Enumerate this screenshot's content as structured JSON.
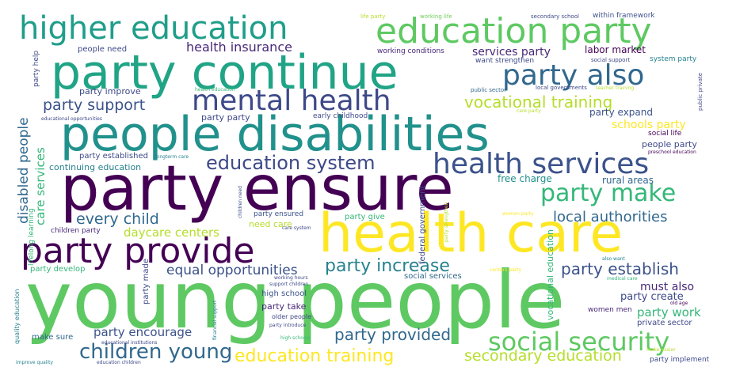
{
  "cloud": {
    "words": [
      {
        "id": "young-people",
        "text": "young people",
        "color": "#5ec962"
      },
      {
        "id": "party-ensure",
        "text": "party ensure",
        "color": "#440154"
      },
      {
        "id": "health-care",
        "text": "health care",
        "color": "#fde725"
      },
      {
        "id": "people-disabilities",
        "text": "people disabilities",
        "color": "#21918c"
      },
      {
        "id": "party-continue",
        "text": "party continue",
        "color": "#20a486"
      },
      {
        "id": "education-party",
        "text": "education party",
        "color": "#5ec962"
      },
      {
        "id": "higher-education",
        "text": "higher education",
        "color": "#1f9e89"
      },
      {
        "id": "party-provide",
        "text": "party provide",
        "color": "#440154"
      },
      {
        "id": "mental-health",
        "text": "mental health",
        "color": "#3e4989"
      },
      {
        "id": "party-also",
        "text": "party also",
        "color": "#31688e"
      },
      {
        "id": "health-services",
        "text": "health services",
        "color": "#3b528b"
      },
      {
        "id": "social-security",
        "text": "social security",
        "color": "#5ec962"
      },
      {
        "id": "party-make",
        "text": "party make",
        "color": "#35b779"
      },
      {
        "id": "children-young",
        "text": "children young",
        "color": "#31688e"
      },
      {
        "id": "education-system",
        "text": "education system",
        "color": "#3e4989"
      },
      {
        "id": "education-training",
        "text": "education training",
        "color": "#fde725"
      },
      {
        "id": "vocational-training",
        "text": "vocational training",
        "color": "#b5de2b"
      },
      {
        "id": "party-support",
        "text": "party support",
        "color": "#3b528b"
      },
      {
        "id": "party-establish",
        "text": "party establish",
        "color": "#3b528b"
      },
      {
        "id": "party-increase",
        "text": "party increase",
        "color": "#26828e"
      },
      {
        "id": "secondary-education",
        "text": "secondary education",
        "color": "#b5de2b"
      },
      {
        "id": "local-authorities",
        "text": "local authorities",
        "color": "#31688e"
      },
      {
        "id": "every-child",
        "text": "every child",
        "color": "#31688e"
      },
      {
        "id": "party-provided",
        "text": "party provided",
        "color": "#31688e"
      },
      {
        "id": "equal-opportunities",
        "text": "equal opportunities",
        "color": "#3b528b"
      },
      {
        "id": "health-insurance",
        "text": "health insurance",
        "color": "#482878"
      },
      {
        "id": "daycare-centers",
        "text": "daycare centers",
        "color": "#b5de2b"
      },
      {
        "id": "party-encourage",
        "text": "party encourage",
        "color": "#3b528b"
      },
      {
        "id": "services-party",
        "text": "services party",
        "color": "#482878"
      },
      {
        "id": "schools-party",
        "text": "schools party",
        "color": "#fde725"
      },
      {
        "id": "must-also",
        "text": "must also",
        "color": "#482878"
      },
      {
        "id": "party-work",
        "text": "party work",
        "color": "#35b779"
      },
      {
        "id": "party-create",
        "text": "party create",
        "color": "#3e4989"
      },
      {
        "id": "party-expand",
        "text": "party expand",
        "color": "#3b528b"
      },
      {
        "id": "labor-market",
        "text": "labor market",
        "color": "#440154"
      },
      {
        "id": "free-charge",
        "text": "free charge",
        "color": "#21918c"
      },
      {
        "id": "rural-areas",
        "text": "rural areas",
        "color": "#31688e"
      },
      {
        "id": "need-care",
        "text": "need care",
        "color": "#b5de2b"
      },
      {
        "id": "party-take",
        "text": "party take",
        "color": "#482878"
      },
      {
        "id": "high-school",
        "text": "high school",
        "color": "#3b528b"
      },
      {
        "id": "party-give",
        "text": "party give",
        "color": "#35b779"
      },
      {
        "id": "party-party",
        "text": "party party",
        "color": "#3e4989"
      },
      {
        "id": "party-improve",
        "text": "party improve",
        "color": "#3e4989"
      },
      {
        "id": "continuing-education",
        "text": "continuing education",
        "color": "#26828e"
      },
      {
        "id": "party-established",
        "text": "party established",
        "color": "#3e4989"
      },
      {
        "id": "people-need",
        "text": "people need",
        "color": "#3e4989"
      },
      {
        "id": "working-conditions",
        "text": "working conditions",
        "color": "#482878"
      },
      {
        "id": "want-strengthen",
        "text": "want strengthen",
        "color": "#3e4989"
      },
      {
        "id": "people-party",
        "text": "people party",
        "color": "#3e4989"
      },
      {
        "id": "social-services",
        "text": "social services",
        "color": "#31688e"
      },
      {
        "id": "private-sector",
        "text": "private sector",
        "color": "#3e4989"
      },
      {
        "id": "children-party",
        "text": "children party",
        "color": "#482878"
      },
      {
        "id": "party-ensured",
        "text": "party ensured",
        "color": "#3b528b"
      },
      {
        "id": "early-childhood",
        "text": "early childhood",
        "color": "#3e4989"
      },
      {
        "id": "party-develop",
        "text": "party develop",
        "color": "#35b779"
      },
      {
        "id": "make-sure",
        "text": "make sure",
        "color": "#31688e"
      },
      {
        "id": "older-people",
        "text": "older people",
        "color": "#3e4989"
      },
      {
        "id": "women-men",
        "text": "women men",
        "color": "#482878"
      },
      {
        "id": "party-implement",
        "text": "party implement",
        "color": "#3e4989"
      },
      {
        "id": "social-life",
        "text": "social life",
        "color": "#440154"
      },
      {
        "id": "within-framework",
        "text": "within framework",
        "color": "#3b528b"
      },
      {
        "id": "system-party",
        "text": "system party",
        "color": "#26828e"
      },
      {
        "id": "social-support",
        "text": "social support",
        "color": "#3e4989"
      },
      {
        "id": "secondary-school",
        "text": "secondary school",
        "color": "#3e4989"
      },
      {
        "id": "working-life",
        "text": "working life",
        "color": "#6ece58"
      },
      {
        "id": "life-party",
        "text": "life party",
        "color": "#b5de2b"
      },
      {
        "id": "public-sector",
        "text": "public sector",
        "color": "#31688e"
      },
      {
        "id": "local-governments",
        "text": "local governments",
        "color": "#3e4989"
      },
      {
        "id": "health-education",
        "text": "health education",
        "color": "#35b779"
      },
      {
        "id": "teacher-training",
        "text": "teacher training",
        "color": "#b5de2b"
      },
      {
        "id": "care-party",
        "text": "care party",
        "color": "#b5de2b"
      },
      {
        "id": "educational-opportunities",
        "text": "educational opportunities",
        "color": "#3e4989"
      },
      {
        "id": "longterm-care",
        "text": "longterm care",
        "color": "#26828e"
      },
      {
        "id": "preschool-education",
        "text": "preschool education",
        "color": "#440154"
      },
      {
        "id": "care-system",
        "text": "care system",
        "color": "#3e4989"
      },
      {
        "id": "women-party",
        "text": "women party",
        "color": "#fde725"
      },
      {
        "id": "also-want",
        "text": "also want",
        "color": "#26828e"
      },
      {
        "id": "medical-care",
        "text": "medical care",
        "color": "#35b779"
      },
      {
        "id": "old-age",
        "text": "old age",
        "color": "#440154"
      },
      {
        "id": "working-hours",
        "text": "working hours",
        "color": "#3e4989"
      },
      {
        "id": "support-children",
        "text": "support children",
        "color": "#3e4989"
      },
      {
        "id": "centers-party",
        "text": "centers party",
        "color": "#fde725"
      },
      {
        "id": "party-introduce",
        "text": "party introduce",
        "color": "#3e4989"
      },
      {
        "id": "high-schools",
        "text": "high schools",
        "color": "#35b779"
      },
      {
        "id": "educational-institutions",
        "text": "educational institutions",
        "color": "#3e4989"
      },
      {
        "id": "education-children",
        "text": "education children",
        "color": "#3e4989"
      },
      {
        "id": "improve-quality",
        "text": "improve quality",
        "color": "#26828e"
      },
      {
        "id": "make-easier",
        "text": "make easier",
        "color": "#b5de2b"
      },
      {
        "id": "disabled-people",
        "text": "disabled people",
        "color": "#31688e"
      },
      {
        "id": "care-services",
        "text": "care services",
        "color": "#35b779"
      },
      {
        "id": "party-help",
        "text": "party help",
        "color": "#3e4989"
      },
      {
        "id": "lifelong-learning",
        "text": "lifelong learning",
        "color": "#35b779"
      },
      {
        "id": "quality-education",
        "text": "quality education",
        "color": "#26828e"
      },
      {
        "id": "party-made",
        "text": "party made",
        "color": "#3e4989"
      },
      {
        "id": "federal-government",
        "text": "federal government",
        "color": "#3e4989"
      },
      {
        "id": "party-strengthen",
        "text": "party strengthen",
        "color": "#b5de2b"
      },
      {
        "id": "children-need",
        "text": "children need",
        "color": "#3e4989"
      },
      {
        "id": "financial-support",
        "text": "financial support",
        "color": "#26828e"
      },
      {
        "id": "vocational-education",
        "text": "vocational education",
        "color": "#35b779"
      },
      {
        "id": "public-private",
        "text": "public private",
        "color": "#3e4989"
      }
    ]
  }
}
